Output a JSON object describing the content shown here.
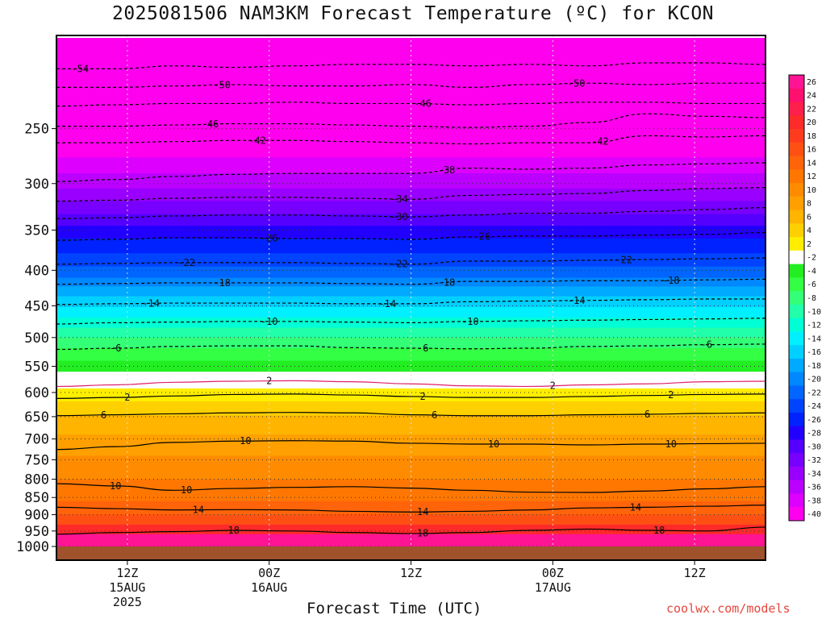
{
  "title": "2025081506 NAM3KM Forecast Temperature (ºC) for KCON",
  "credit": "coolwx.com/models",
  "chart_data": {
    "type": "heatmap",
    "title": "2025081506 NAM3KM Forecast Temperature (ºC) for KCON",
    "xlabel": "Forecast Time (UTC)",
    "ylabel": "",
    "y_scale": "log-pressure",
    "y_ticks": [
      250,
      300,
      350,
      400,
      450,
      500,
      550,
      600,
      650,
      700,
      750,
      800,
      850,
      900,
      950,
      1000
    ],
    "ylim": [
      1000,
      185
    ],
    "x_hours_range": [
      6,
      66
    ],
    "x_ticks": [
      {
        "hour": 12,
        "lines": [
          "12Z",
          "15AUG",
          "2025"
        ]
      },
      {
        "hour": 24,
        "lines": [
          "00Z",
          "16AUG"
        ]
      },
      {
        "hour": 36,
        "lines": [
          "12Z"
        ]
      },
      {
        "hour": 48,
        "lines": [
          "00Z",
          "17AUG"
        ]
      },
      {
        "hour": 60,
        "lines": [
          "12Z"
        ]
      }
    ],
    "grid": true,
    "colorbar_levels": [
      26,
      24,
      22,
      20,
      18,
      16,
      14,
      12,
      10,
      8,
      6,
      4,
      2,
      -2,
      -4,
      -6,
      -8,
      -10,
      -12,
      -14,
      -16,
      -18,
      -20,
      -22,
      -24,
      -26,
      -28,
      -30,
      -32,
      -34,
      -36,
      -38,
      -40
    ],
    "colorbar_colors": [
      "#ff1493",
      "#ff0f6e",
      "#ff1f4c",
      "#ff2a2a",
      "#ff3b1e",
      "#ff5014",
      "#ff640a",
      "#ff7700",
      "#ff8c00",
      "#ffa000",
      "#ffb400",
      "#ffd000",
      "#ffee00",
      "#ffffff",
      "#22ee22",
      "#33ff44",
      "#33ff77",
      "#22ffaa",
      "#00ffd5",
      "#00f0ff",
      "#00d0ff",
      "#00aaff",
      "#0088ff",
      "#0066ff",
      "#0044ff",
      "#0022ff",
      "#2200ff",
      "#5500ff",
      "#7700ff",
      "#9900ff",
      "#bb00ff",
      "#dd00ff",
      "#ff00ee"
    ],
    "contours": [
      {
        "value": -54,
        "label": "-54",
        "level": [
          205,
          205,
          203,
          204,
          203,
          202,
          202,
          203,
          202,
          203,
          201,
          201,
          202
        ],
        "label_hours": [
          8
        ]
      },
      {
        "value": -50,
        "label": "-50",
        "level": [
          218,
          218,
          217,
          216,
          217,
          217,
          216,
          218,
          216,
          215,
          216,
          215,
          215
        ],
        "label_hours": [
          20,
          50
        ]
      },
      {
        "value": -46,
        "label": "-46",
        "level": [
          232,
          231,
          230,
          230,
          229,
          230,
          230,
          231,
          230,
          229,
          229,
          230,
          230
        ],
        "label_hours": [
          37
        ]
      },
      {
        "value": -46,
        "label": "-46",
        "level": [
          248,
          248,
          247,
          246,
          246,
          247,
          248,
          249,
          248,
          245,
          238,
          240,
          241
        ],
        "label_hours": [
          19
        ]
      },
      {
        "value": -42,
        "label": "-42",
        "level": [
          262,
          262,
          261,
          260,
          260,
          261,
          262,
          263,
          262,
          262,
          256,
          257,
          256
        ],
        "label_hours": [
          23,
          52
        ]
      },
      {
        "value": -38,
        "label": "-38",
        "level": [
          298,
          296,
          293,
          291,
          290,
          290,
          290,
          285,
          286,
          285,
          282,
          281,
          280
        ],
        "label_hours": [
          39
        ]
      },
      {
        "value": -34,
        "label": "-34",
        "level": [
          318,
          317,
          315,
          314,
          314,
          315,
          316,
          312,
          311,
          310,
          307,
          305,
          304
        ],
        "label_hours": [
          35
        ]
      },
      {
        "value": -30,
        "label": "-30",
        "level": [
          337,
          336,
          334,
          333,
          333,
          334,
          335,
          333,
          331,
          331,
          329,
          327,
          325
        ],
        "label_hours": [
          35
        ]
      },
      {
        "value": -26,
        "label": "-26",
        "level": [
          362,
          361,
          359,
          359,
          360,
          360,
          361,
          358,
          357,
          357,
          356,
          355,
          353
        ],
        "label_hours": [
          24,
          42
        ]
      },
      {
        "value": -22,
        "label": "-22",
        "level": [
          392,
          391,
          390,
          390,
          390,
          391,
          392,
          388,
          388,
          387,
          386,
          385,
          384
        ],
        "label_hours": [
          17,
          35,
          54
        ]
      },
      {
        "value": -18,
        "label": "-18",
        "level": [
          419,
          418,
          417,
          417,
          417,
          418,
          419,
          415,
          415,
          414,
          414,
          413,
          412
        ],
        "label_hours": [
          20,
          39,
          58
        ]
      },
      {
        "value": -14,
        "label": "-14",
        "level": [
          448,
          447,
          446,
          446,
          446,
          447,
          447,
          444,
          443,
          442,
          441,
          440,
          440
        ],
        "label_hours": [
          14,
          34,
          50
        ]
      },
      {
        "value": -10,
        "label": "-10",
        "level": [
          478,
          476,
          475,
          474,
          474,
          475,
          476,
          474,
          473,
          472,
          471,
          470,
          469
        ],
        "label_hours": [
          24,
          41
        ]
      },
      {
        "value": -6,
        "label": "-6",
        "level": [
          520,
          518,
          515,
          514,
          514,
          517,
          518,
          519,
          518,
          515,
          514,
          512,
          511
        ],
        "label_hours": [
          11,
          37,
          61
        ]
      },
      {
        "value": 2,
        "label": "2",
        "level": [
          588,
          585,
          580,
          578,
          577,
          579,
          583,
          587,
          588,
          585,
          583,
          579,
          578
        ],
        "label_hours": [
          24,
          48
        ]
      },
      {
        "value": 2,
        "label": "2",
        "level": [
          612,
          610,
          607,
          604,
          603,
          605,
          608,
          610,
          610,
          608,
          606,
          604,
          603
        ],
        "label_hours": [
          12,
          37,
          58
        ]
      },
      {
        "value": 6,
        "label": "6",
        "level": [
          648,
          646,
          644,
          642,
          641,
          642,
          646,
          648,
          648,
          646,
          645,
          643,
          642
        ],
        "label_hours": [
          10,
          38,
          56
        ]
      },
      {
        "value": 10,
        "label": "10",
        "level": [
          725,
          718,
          708,
          705,
          704,
          705,
          710,
          712,
          712,
          714,
          712,
          711,
          710
        ],
        "label_hours": [
          22,
          43,
          58
        ]
      },
      {
        "value": 10,
        "label": "10",
        "level": [
          812,
          818,
          830,
          825,
          822,
          820,
          824,
          830,
          835,
          836,
          832,
          826,
          820
        ],
        "label_hours": [
          11,
          17
        ]
      },
      {
        "value": 14,
        "label": "14",
        "level": [
          878,
          882,
          886,
          885,
          886,
          890,
          892,
          890,
          886,
          880,
          878,
          875,
          872
        ],
        "label_hours": [
          18,
          37,
          55
        ]
      },
      {
        "value": 18,
        "label": "18",
        "level": [
          960,
          955,
          952,
          948,
          950,
          955,
          958,
          955,
          948,
          944,
          948,
          950,
          938
        ],
        "label_hours": [
          21,
          37,
          57
        ]
      }
    ]
  }
}
